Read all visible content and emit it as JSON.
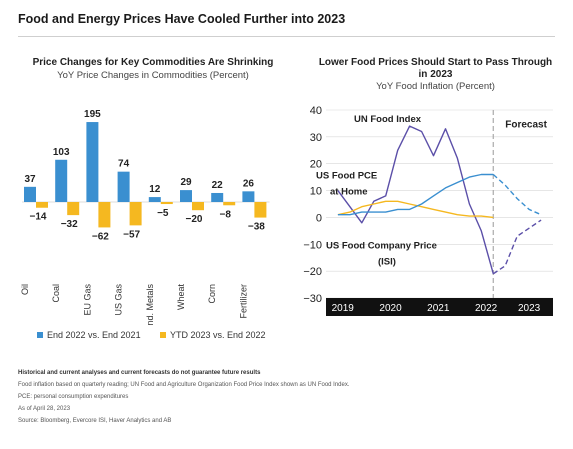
{
  "title": "Food and Energy Prices Have Cooled Further into 2023",
  "chart_data": [
    {
      "type": "bar",
      "title": "Price Changes for Key Commodities Are Shrinking",
      "subtitle": "YoY Price Changes in Commodities (Percent)",
      "categories": [
        "Oil",
        "Coal",
        "EU Gas",
        "US Gas",
        "Ind. Metals",
        "Wheat",
        "Corn",
        "Fertilizer"
      ],
      "series": [
        {
          "name": "End 2022 vs. End 2021",
          "color": "#3a8fd0",
          "values": [
            37,
            103,
            195,
            74,
            12,
            29,
            22,
            26
          ],
          "labels": [
            "37",
            "103",
            "195",
            "74",
            "12",
            "29",
            "22",
            "26"
          ]
        },
        {
          "name": "YTD 2023 vs. End 2022",
          "color": "#f5b820",
          "values": [
            -14,
            -32,
            -62,
            -57,
            -5,
            -20,
            -8,
            -38
          ],
          "labels": [
            "−14",
            "−32",
            "−62",
            "−57",
            "−5",
            "−20",
            "−8",
            "−38"
          ]
        }
      ],
      "legend": "bottom"
    },
    {
      "type": "line",
      "title": "Lower Food Prices Should Start to Pass Through in 2023",
      "subtitle": "YoY Food Inflation (Percent)",
      "ylim": [
        -30,
        40
      ],
      "yticks": [
        "40",
        "30",
        "20",
        "10",
        "0",
        "−10",
        "−20",
        "−30"
      ],
      "ytick_values": [
        40,
        30,
        20,
        10,
        0,
        -10,
        -20,
        -30
      ],
      "xticks": [
        "2019",
        "2020",
        "2021",
        "2022",
        "2023"
      ],
      "xtick_values": [
        2019.1,
        2020.1,
        2021.1,
        2022.1,
        2023.0
      ],
      "xlim": [
        2018.75,
        2023.5
      ],
      "forecast_start": 2022.25,
      "forecast_label": "Forecast",
      "series": [
        {
          "name": "UN Food Index",
          "color": "#5b4fa8",
          "x": [
            2019.0,
            2019.25,
            2019.5,
            2019.75,
            2020.0,
            2020.25,
            2020.5,
            2020.75,
            2021.0,
            2021.25,
            2021.5,
            2021.75,
            2022.0,
            2022.25
          ],
          "y": [
            10,
            4,
            -2,
            6,
            8,
            25,
            34,
            32,
            23,
            33,
            22,
            5,
            -5,
            -21
          ],
          "forecast_x": [
            2022.25,
            2022.5,
            2022.75,
            2023.0,
            2023.25
          ],
          "forecast_y": [
            -21,
            -18,
            -7,
            -4,
            -1
          ]
        },
        {
          "name": "US Food PCE at Home",
          "color": "#f5b820",
          "x": [
            2019.0,
            2019.25,
            2019.5,
            2019.75,
            2020.0,
            2020.25,
            2020.5,
            2020.75,
            2021.0,
            2021.25,
            2021.5,
            2021.75,
            2022.0,
            2022.25
          ],
          "y": [
            1,
            2,
            4,
            5,
            6,
            6,
            5,
            4,
            3,
            2,
            1,
            0.5,
            0.5,
            0
          ]
        },
        {
          "name": "US Food Company Price (ISI)",
          "color": "#3a8fd0",
          "x": [
            2019.0,
            2019.25,
            2019.5,
            2019.75,
            2020.0,
            2020.25,
            2020.5,
            2020.75,
            2021.0,
            2021.25,
            2021.5,
            2021.75,
            2022.0,
            2022.25
          ],
          "y": [
            1,
            1,
            2,
            2,
            2,
            3,
            3,
            5,
            8,
            11,
            13,
            15,
            16,
            16
          ],
          "forecast_x": [
            2022.25,
            2022.5,
            2022.75,
            2023.0,
            2023.25
          ],
          "forecast_y": [
            16,
            12,
            7,
            3,
            1
          ]
        }
      ],
      "annotations": [
        "UN Food Index",
        "US Food PCE",
        "at Home",
        "US Food Company Price",
        "(ISI)"
      ]
    }
  ],
  "footer": {
    "disclaimer": "Historical and current analyses and current forecasts do not guarantee future results",
    "note": "Food inflation based on quarterly reading; UN Food and Agriculture Organization Food Price Index shown as UN Food Index.",
    "pce": "PCE: personal consumption expenditures",
    "asof": "As of April 28, 2023",
    "source": "Source: Bloomberg, Evercore ISI, Haver Analytics and AB"
  }
}
